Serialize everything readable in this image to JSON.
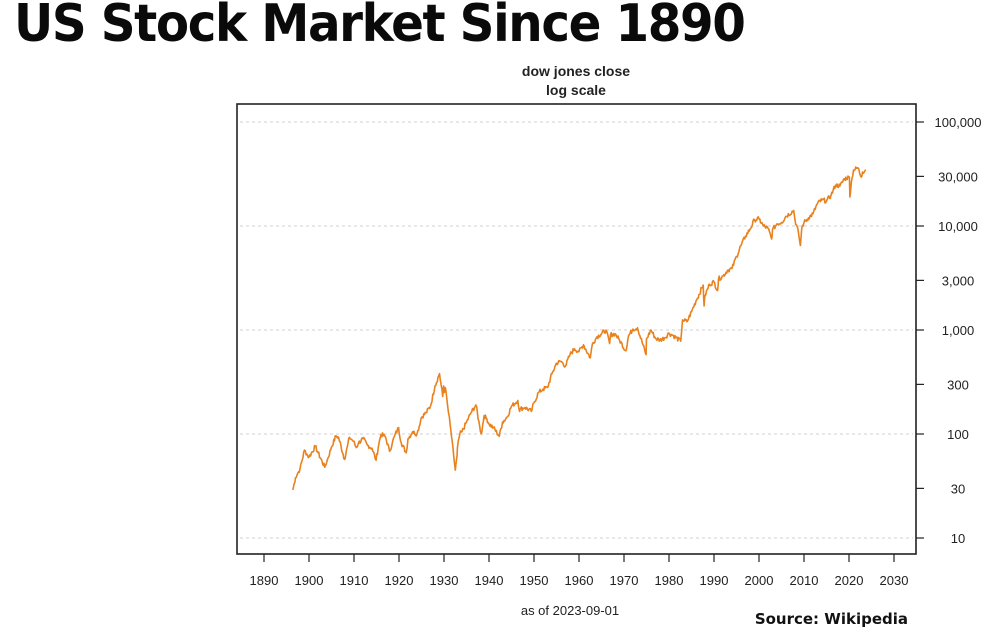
{
  "page": {
    "title": "US Stock Market Since 1890",
    "source": "Source: Wikipedia"
  },
  "chart_data": {
    "type": "line",
    "title": "dow jones close",
    "subtitle": "log scale",
    "xlabel": "as of 2023-09-01",
    "ylabel": "",
    "y_scale": "log",
    "y_axis_position": "right",
    "xlim": [
      1886,
      2034
    ],
    "ylim": [
      8,
      150000
    ],
    "grid": true,
    "x_ticks": [
      1890,
      1900,
      1910,
      1920,
      1930,
      1940,
      1950,
      1960,
      1970,
      1980,
      1990,
      2000,
      2010,
      2020,
      2030
    ],
    "y_ticks": [
      10,
      30,
      100,
      300,
      1000,
      3000,
      10000,
      30000,
      100000
    ],
    "y_tick_labels": [
      "10",
      "30",
      "100",
      "300",
      "1,000",
      "3,000",
      "10,000",
      "30,000",
      "100,000"
    ],
    "y_gridlines": [
      10,
      100,
      1000,
      10000,
      100000
    ],
    "line_color": "#E8821E",
    "series": [
      {
        "name": "Dow Jones close",
        "x": [
          1896.4,
          1897,
          1897.5,
          1898,
          1899,
          1899.7,
          1900,
          1901.4,
          1902,
          1903.5,
          1904,
          1905,
          1906,
          1906.6,
          1907.9,
          1908.5,
          1909,
          1909.9,
          1910.5,
          1911,
          1912,
          1913,
          1914,
          1914.9,
          1915.5,
          1916,
          1917,
          1917.9,
          1918.5,
          1919,
          1919.9,
          1920.5,
          1921.6,
          1922,
          1923,
          1924,
          1925,
          1926,
          1927,
          1928,
          1929,
          1929.7,
          1929.9,
          1930,
          1930.3,
          1931,
          1931.5,
          1932.5,
          1932.9,
          1933,
          1933.5,
          1934,
          1935,
          1936,
          1937.1,
          1937.9,
          1938.3,
          1938.9,
          1939.5,
          1940,
          1941,
          1942.3,
          1943,
          1944,
          1945,
          1946.4,
          1946.8,
          1947,
          1948,
          1949.4,
          1950,
          1951,
          1952,
          1953,
          1954,
          1955,
          1956,
          1957,
          1958,
          1959,
          1960,
          1961,
          1962.5,
          1963,
          1964,
          1966,
          1966.8,
          1967,
          1968,
          1969,
          1970.4,
          1971,
          1972,
          1973,
          1974.9,
          1975,
          1976,
          1977,
          1978,
          1979,
          1980,
          1981,
          1982.6,
          1983,
          1984,
          1985,
          1986,
          1987.6,
          1987.8,
          1988,
          1989,
          1990,
          1990.8,
          1991,
          1992,
          1993,
          1994,
          1995,
          1996,
          1997,
          1998,
          1999,
          2000,
          2001,
          2002,
          2002.8,
          2003,
          2004,
          2005,
          2006,
          2007.7,
          2008,
          2008.8,
          2009.2,
          2009.5,
          2010,
          2011,
          2012,
          2013,
          2014,
          2015,
          2016,
          2017,
          2018,
          2019,
          2020.1,
          2020.2,
          2020.5,
          2021,
          2022,
          2022.7,
          2023,
          2023.7
        ],
        "values": [
          29,
          38,
          42,
          46,
          70,
          62,
          60,
          76,
          66,
          48,
          55,
          75,
          96,
          92,
          57,
          75,
          93,
          85,
          74,
          82,
          90,
          78,
          73,
          56,
          80,
          99,
          94,
          68,
          82,
          95,
          115,
          82,
          66,
          90,
          105,
          100,
          145,
          160,
          185,
          290,
          381,
          230,
          290,
          250,
          280,
          160,
          110,
          45,
          62,
          75,
          100,
          105,
          130,
          160,
          190,
          120,
          100,
          150,
          140,
          125,
          115,
          95,
          130,
          145,
          185,
          210,
          165,
          175,
          180,
          165,
          200,
          250,
          270,
          280,
          380,
          480,
          500,
          450,
          580,
          660,
          620,
          720,
          540,
          740,
          860,
          995,
          740,
          900,
          920,
          800,
          630,
          880,
          1020,
          1050,
          580,
          820,
          1000,
          830,
          800,
          840,
          930,
          880,
          780,
          1250,
          1200,
          1500,
          1900,
          2700,
          1700,
          2150,
          2750,
          2900,
          2400,
          3100,
          3300,
          3750,
          3900,
          5100,
          6500,
          8000,
          9300,
          11500,
          11700,
          10000,
          9500,
          7500,
          9200,
          10500,
          10800,
          12400,
          14100,
          11500,
          8400,
          6500,
          9600,
          10800,
          12000,
          13100,
          16500,
          17800,
          17400,
          19700,
          24700,
          24300,
          28500,
          29500,
          19000,
          26000,
          34500,
          36300,
          29500,
          33000,
          34800
        ]
      }
    ]
  }
}
